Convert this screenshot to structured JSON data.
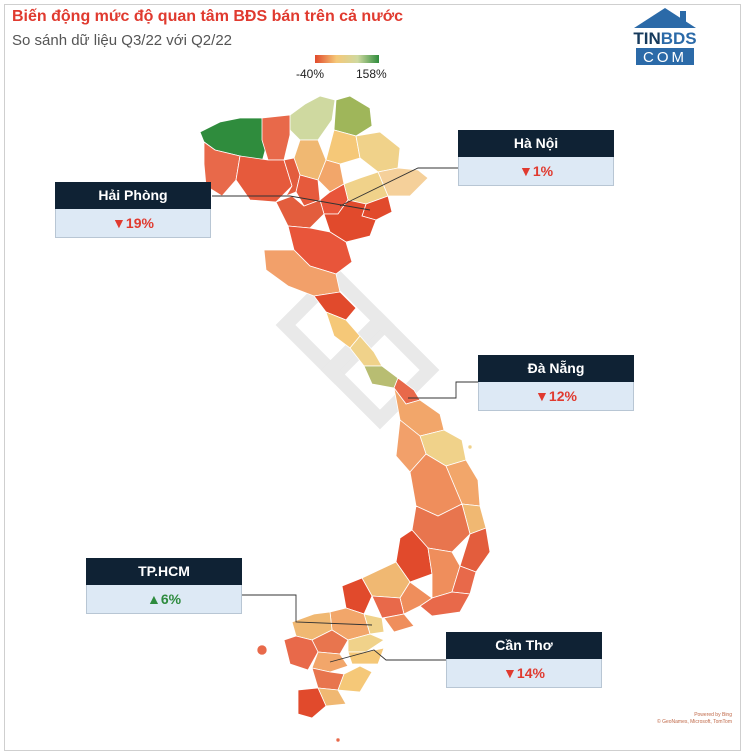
{
  "title": "Biến động mức độ quan tâm BĐS bán trên cả nước",
  "subtitle": "So sánh dữ liệu Q3/22 với Q2/22",
  "logo": {
    "top": "TIN",
    "brand": "BDS",
    "bottom": "COM"
  },
  "legend": {
    "min": "-40%",
    "max": "158%",
    "colors": [
      "#e14a2c",
      "#f5c878",
      "#cfd9a0",
      "#2f8c3d"
    ]
  },
  "callouts": [
    {
      "name": "Hà Nội",
      "value": "1%",
      "direction": "down"
    },
    {
      "name": "Hải Phòng",
      "value": "19%",
      "direction": "down"
    },
    {
      "name": "Đà Nẵng",
      "value": "12%",
      "direction": "down"
    },
    {
      "name": "TP.HCM",
      "value": "6%",
      "direction": "up"
    },
    {
      "name": "Cần Thơ",
      "value": "14%",
      "direction": "down"
    }
  ],
  "arrows": {
    "down": "▼",
    "up": "▲"
  },
  "credit": {
    "line1": "Powered by Bing",
    "line2": "© GeoNames, Microsoft, TomTom"
  }
}
